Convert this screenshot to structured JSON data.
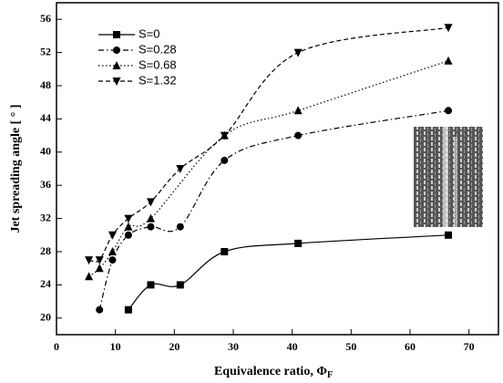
{
  "chart_data": {
    "type": "line",
    "xlabel": "Equivalence ratio, Φ",
    "xlabel_sub": "F",
    "ylabel": "Jet spreading angle [ ° ]",
    "xlim": [
      0,
      75
    ],
    "xticks": [
      0,
      10,
      20,
      30,
      40,
      50,
      60,
      70
    ],
    "ylim": [
      18,
      58
    ],
    "yticks": [
      20,
      24,
      28,
      32,
      36,
      40,
      44,
      48,
      52,
      56
    ],
    "legend": "upper left",
    "series": [
      {
        "name": "S=0",
        "color": "#000000",
        "marker": "square",
        "dash": "solid",
        "x": [
          12.2,
          16,
          21,
          28.5,
          41,
          66.5
        ],
        "values": [
          21,
          24,
          24,
          28,
          29,
          30
        ]
      },
      {
        "name": "S=0.28",
        "color": "#000000",
        "marker": "circle",
        "dash": "dashdot",
        "x": [
          7.3,
          9.5,
          12.2,
          16,
          21,
          28.5,
          41,
          66.5
        ],
        "values": [
          21,
          27,
          30,
          31,
          31,
          39,
          42,
          45
        ]
      },
      {
        "name": "S=0.68",
        "color": "#000000",
        "marker": "triangle-up",
        "dash": "dotted",
        "x": [
          5.5,
          7.3,
          9.5,
          12.2,
          16,
          28.5,
          41,
          66.5
        ],
        "values": [
          25,
          26,
          28,
          31,
          32,
          42,
          45,
          51
        ]
      },
      {
        "name": "S=1.32",
        "color": "#000000",
        "marker": "triangle-down",
        "dash": "dashed",
        "x": [
          5.5,
          7.3,
          9.5,
          12.2,
          16,
          21,
          28.5,
          41,
          66.5
        ],
        "values": [
          27,
          27,
          30,
          32,
          34,
          38,
          42,
          52,
          55
        ]
      }
    ]
  }
}
